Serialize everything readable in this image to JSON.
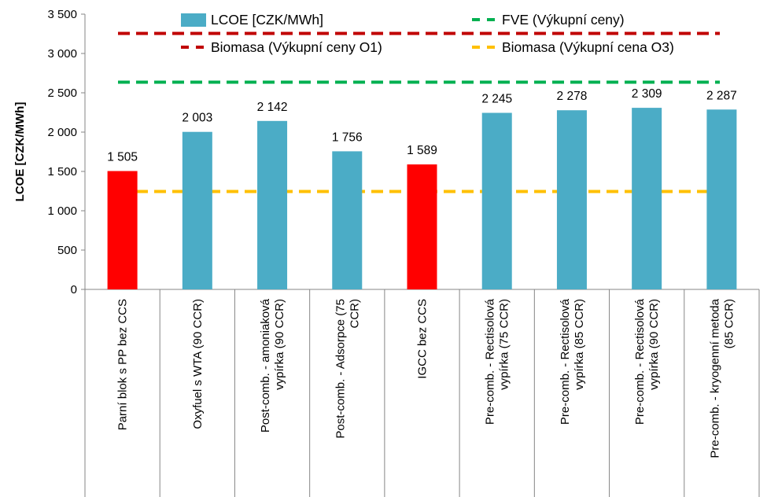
{
  "chart_data": {
    "type": "bar",
    "title": "",
    "ylabel": "LCOE [CZK/MWh]",
    "xlabel": "",
    "ylim": [
      0,
      3500
    ],
    "yticks": [
      0,
      500,
      1000,
      1500,
      2000,
      2500,
      3000,
      3500
    ],
    "ytick_labels": [
      "0",
      "500",
      "1 000",
      "1 500",
      "2 000",
      "2 500",
      "3 000",
      "3 500"
    ],
    "categories": [
      [
        "Parní blok s PP bez CCS"
      ],
      [
        "Oxyfuel s  WTA (90 CCR)"
      ],
      [
        "Post-comb. - amoniaková",
        "vypírka (90 CCR)"
      ],
      [
        "Post-comb. - Adsorpce (75",
        "CCR)"
      ],
      [
        "IGCC bez CCS"
      ],
      [
        "Pre-comb. - Rectisolová",
        "vypírka (75 CCR)"
      ],
      [
        "Pre-comb. - Rectisolová",
        "vypírka (85 CCR)"
      ],
      [
        "Pre-comb. - Rectisolová",
        "vypírka (90 CCR)"
      ],
      [
        "Pre-comb. - kryogenní metoda",
        "(85 CCR)"
      ]
    ],
    "series": [
      {
        "name": "LCOE [CZK/MWh]",
        "values": [
          1505,
          2003,
          2142,
          1756,
          1589,
          2245,
          2278,
          2309,
          2287
        ],
        "labels": [
          "1 505",
          "2 003",
          "2 142",
          "1 756",
          "1 589",
          "2 245",
          "2 278",
          "2 309",
          "2 287"
        ],
        "colors": [
          "#FF0000",
          "#4BACC6",
          "#4BACC6",
          "#4BACC6",
          "#FF0000",
          "#4BACC6",
          "#4BACC6",
          "#4BACC6",
          "#4BACC6"
        ]
      }
    ],
    "reference_lines": [
      {
        "name": "FVE (Výkupní ceny)",
        "value": 2635,
        "color": "#00B050"
      },
      {
        "name": "Biomasa (Výkupní ceny O1)",
        "value": 3255,
        "color": "#C00000"
      },
      {
        "name": "Biomasa (Výkupní cena O3)",
        "value": 1245,
        "color": "#FFC000"
      }
    ],
    "legend": {
      "placement": "top",
      "items": [
        {
          "label": "LCOE [CZK/MWh]",
          "kind": "bar",
          "color": "#4BACC6"
        },
        {
          "label": "FVE (Výkupní ceny)",
          "kind": "dashed-line",
          "color": "#00B050"
        },
        {
          "label": "Biomasa (Výkupní ceny O1)",
          "kind": "dashed-line",
          "color": "#C00000"
        },
        {
          "label": "Biomasa (Výkupní cena O3)",
          "kind": "dashed-line",
          "color": "#FFC000"
        }
      ]
    },
    "grid": false
  }
}
